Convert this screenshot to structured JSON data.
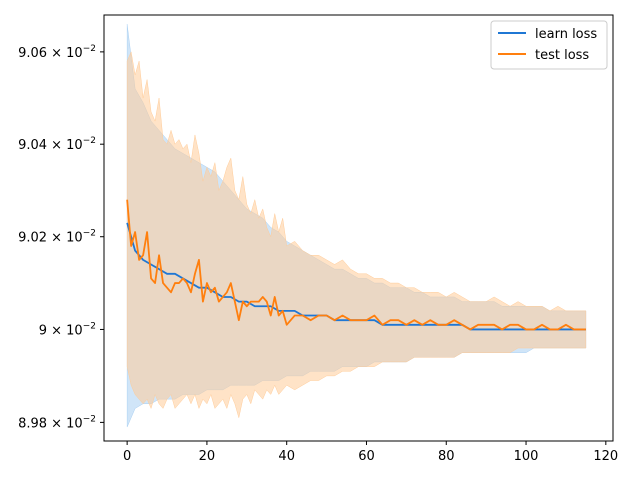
{
  "chart_data": {
    "type": "line",
    "xlabel": "",
    "ylabel": "",
    "xlim": [
      -5.8,
      121.8
    ],
    "ylim": [
      0.08976,
      0.09068
    ],
    "yscale": "log",
    "legend_position": "upper right",
    "x_ticks": [
      0,
      20,
      40,
      60,
      80,
      100,
      120
    ],
    "x_tick_labels": [
      "0",
      "20",
      "40",
      "60",
      "80",
      "100",
      "120"
    ],
    "y_ticks": [
      0.0898,
      0.09,
      0.0902,
      0.0904,
      0.0906
    ],
    "y_tick_labels": [
      {
        "mant": "8.98",
        "base": "10",
        "exp": "−2"
      },
      {
        "mant": "9",
        "base": "10",
        "exp": "−2"
      },
      {
        "mant": "9.02",
        "base": "10",
        "exp": "−2"
      },
      {
        "mant": "9.04",
        "base": "10",
        "exp": "−2"
      },
      {
        "mant": "9.06",
        "base": "10",
        "exp": "−2"
      }
    ],
    "series": [
      {
        "name": "learn loss",
        "color": "#1f77d4",
        "band_color": "#a9cff2",
        "x": [
          0,
          2,
          4,
          6,
          8,
          10,
          12,
          14,
          16,
          18,
          20,
          22,
          24,
          26,
          28,
          30,
          32,
          34,
          36,
          38,
          40,
          42,
          44,
          46,
          48,
          50,
          52,
          54,
          56,
          58,
          60,
          62,
          64,
          66,
          68,
          70,
          72,
          74,
          76,
          78,
          80,
          82,
          84,
          86,
          88,
          90,
          92,
          94,
          96,
          98,
          100,
          102,
          104,
          106,
          108,
          110,
          112,
          114,
          115
        ],
        "values": [
          0.09023,
          0.09017,
          0.09015,
          0.09014,
          0.09013,
          0.09012,
          0.09012,
          0.09011,
          0.0901,
          0.09009,
          0.09009,
          0.09008,
          0.09007,
          0.09007,
          0.09006,
          0.09006,
          0.09005,
          0.09005,
          0.09005,
          0.09004,
          0.09004,
          0.09004,
          0.09003,
          0.09003,
          0.09003,
          0.09003,
          0.09002,
          0.09002,
          0.09002,
          0.09002,
          0.09002,
          0.09002,
          0.09001,
          0.09001,
          0.09001,
          0.09001,
          0.09001,
          0.09001,
          0.09001,
          0.09001,
          0.09001,
          0.09001,
          0.09001,
          0.09,
          0.09,
          0.09,
          0.09,
          0.09,
          0.09,
          0.09,
          0.09,
          0.09,
          0.09,
          0.09,
          0.09,
          0.09,
          0.09,
          0.09,
          0.09
        ],
        "upper": [
          0.09066,
          0.09052,
          0.09049,
          0.09045,
          0.09043,
          0.09041,
          0.09039,
          0.09038,
          0.09037,
          0.09036,
          0.09035,
          0.09034,
          0.09032,
          0.0903,
          0.09028,
          0.09026,
          0.09025,
          0.09024,
          0.09022,
          0.09021,
          0.09019,
          0.09018,
          0.09017,
          0.09016,
          0.09015,
          0.09014,
          0.09013,
          0.09013,
          0.09012,
          0.09011,
          0.09011,
          0.0901,
          0.0901,
          0.09009,
          0.09009,
          0.09009,
          0.09008,
          0.09008,
          0.09007,
          0.09007,
          0.09007,
          0.09007,
          0.09006,
          0.09006,
          0.09006,
          0.09006,
          0.09006,
          0.09005,
          0.09005,
          0.09005,
          0.09005,
          0.09005,
          0.09005,
          0.09004,
          0.09004,
          0.09004,
          0.09004,
          0.09004,
          0.09004
        ],
        "lower": [
          0.08979,
          0.08983,
          0.08984,
          0.08984,
          0.08985,
          0.08985,
          0.08985,
          0.08986,
          0.08986,
          0.08986,
          0.08987,
          0.08987,
          0.08987,
          0.08988,
          0.08988,
          0.08988,
          0.08988,
          0.08989,
          0.08989,
          0.08989,
          0.0899,
          0.0899,
          0.0899,
          0.08991,
          0.08991,
          0.08991,
          0.08991,
          0.08992,
          0.08992,
          0.08992,
          0.08992,
          0.08993,
          0.08993,
          0.08993,
          0.08993,
          0.08993,
          0.08994,
          0.08994,
          0.08994,
          0.08994,
          0.08994,
          0.08994,
          0.08995,
          0.08995,
          0.08995,
          0.08995,
          0.08995,
          0.08995,
          0.08995,
          0.08995,
          0.08995,
          0.08996,
          0.08996,
          0.08996,
          0.08996,
          0.08996,
          0.08996,
          0.08996,
          0.08996
        ]
      },
      {
        "name": "test loss",
        "color": "#ff7f0e",
        "band_color": "#ffcc99",
        "x": [
          0,
          1,
          2,
          3,
          4,
          5,
          6,
          7,
          8,
          9,
          10,
          11,
          12,
          13,
          14,
          15,
          16,
          17,
          18,
          19,
          20,
          21,
          22,
          23,
          24,
          25,
          26,
          27,
          28,
          29,
          30,
          31,
          32,
          33,
          34,
          35,
          36,
          37,
          38,
          39,
          40,
          42,
          44,
          46,
          48,
          50,
          52,
          54,
          56,
          58,
          60,
          62,
          64,
          66,
          68,
          70,
          72,
          74,
          76,
          78,
          80,
          82,
          84,
          86,
          88,
          90,
          92,
          94,
          96,
          98,
          100,
          102,
          104,
          106,
          108,
          110,
          112,
          114,
          115
        ],
        "values": [
          0.09028,
          0.09018,
          0.09021,
          0.09015,
          0.09016,
          0.09021,
          0.09011,
          0.0901,
          0.09016,
          0.0901,
          0.09009,
          0.09008,
          0.0901,
          0.0901,
          0.09011,
          0.0901,
          0.09008,
          0.09012,
          0.09015,
          0.09006,
          0.0901,
          0.09008,
          0.09009,
          0.09006,
          0.09007,
          0.09008,
          0.0901,
          0.09006,
          0.09002,
          0.09006,
          0.09005,
          0.09006,
          0.09006,
          0.09006,
          0.09007,
          0.09006,
          0.09003,
          0.09007,
          0.09003,
          0.09004,
          0.09001,
          0.09003,
          0.09003,
          0.09002,
          0.09003,
          0.09003,
          0.09002,
          0.09003,
          0.09002,
          0.09002,
          0.09002,
          0.09003,
          0.09001,
          0.09002,
          0.09002,
          0.09001,
          0.09002,
          0.09001,
          0.09002,
          0.09001,
          0.09001,
          0.09002,
          0.09001,
          0.09,
          0.09001,
          0.09001,
          0.09001,
          0.09,
          0.09001,
          0.09001,
          0.09,
          0.09,
          0.09001,
          0.09,
          0.09,
          0.09001,
          0.09,
          0.09,
          0.09
        ],
        "upper": [
          0.09058,
          0.0906,
          0.09055,
          0.09058,
          0.0905,
          0.09054,
          0.09047,
          0.09045,
          0.0905,
          0.09041,
          0.0904,
          0.09043,
          0.0904,
          0.09041,
          0.09039,
          0.0904,
          0.09036,
          0.09042,
          0.09038,
          0.09032,
          0.09035,
          0.09033,
          0.09036,
          0.0903,
          0.09032,
          0.09035,
          0.09037,
          0.0903,
          0.09028,
          0.09033,
          0.09027,
          0.09025,
          0.09028,
          0.09024,
          0.09026,
          0.09022,
          0.0902,
          0.09025,
          0.09021,
          0.09024,
          0.09018,
          0.09019,
          0.09017,
          0.09016,
          0.09016,
          0.09015,
          0.09014,
          0.09015,
          0.09013,
          0.09012,
          0.09012,
          0.09011,
          0.09011,
          0.0901,
          0.0901,
          0.09009,
          0.09009,
          0.09008,
          0.09008,
          0.09008,
          0.09007,
          0.09008,
          0.09007,
          0.09006,
          0.09006,
          0.09006,
          0.09007,
          0.09006,
          0.09005,
          0.09006,
          0.09005,
          0.09005,
          0.09005,
          0.09004,
          0.09005,
          0.09004,
          0.09004,
          0.09004,
          0.09004
        ],
        "lower": [
          0.08992,
          0.08988,
          0.08986,
          0.08985,
          0.08984,
          0.08985,
          0.08983,
          0.08986,
          0.08984,
          0.08983,
          0.08985,
          0.08986,
          0.08983,
          0.08984,
          0.08985,
          0.08986,
          0.08984,
          0.08986,
          0.08983,
          0.08985,
          0.08984,
          0.08986,
          0.08983,
          0.08984,
          0.08985,
          0.08983,
          0.08986,
          0.08984,
          0.08981,
          0.08985,
          0.08986,
          0.08984,
          0.08987,
          0.08986,
          0.08985,
          0.08987,
          0.08986,
          0.08988,
          0.08986,
          0.08987,
          0.08988,
          0.08987,
          0.08988,
          0.08989,
          0.08989,
          0.0899,
          0.0899,
          0.08991,
          0.08991,
          0.08992,
          0.08992,
          0.08992,
          0.08993,
          0.08993,
          0.08993,
          0.08993,
          0.08994,
          0.08994,
          0.08994,
          0.08994,
          0.08994,
          0.08994,
          0.08995,
          0.08995,
          0.08995,
          0.08995,
          0.08995,
          0.08995,
          0.08995,
          0.08996,
          0.08996,
          0.08996,
          0.08996,
          0.08996,
          0.08996,
          0.08996,
          0.08996,
          0.08996,
          0.08996
        ]
      }
    ]
  }
}
